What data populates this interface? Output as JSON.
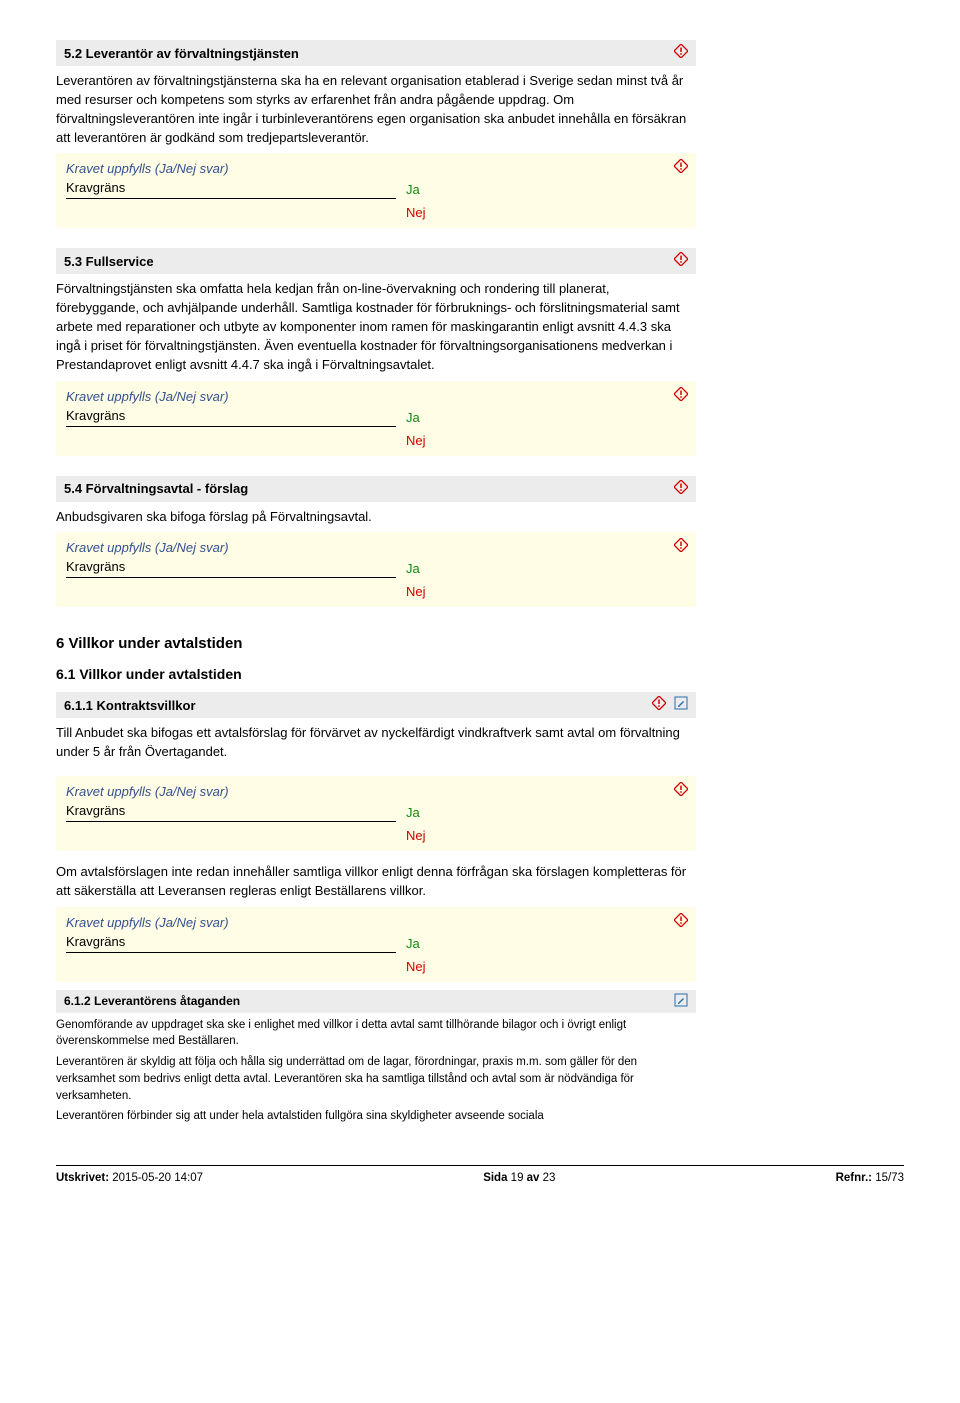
{
  "s52": {
    "title": "5.2 Leverantör av förvaltningstjänsten",
    "body": "Leverantören av förvaltningstjänsterna ska ha en relevant organisation etablerad i Sverige sedan minst två år med resurser och kompetens som styrks av erfarenhet från andra pågående uppdrag. Om förvaltningsleverantören inte ingår i turbinleverantörens egen organisation ska anbudet innehålla en försäkran att leverantören är godkänd som tredjepartsleverantör."
  },
  "s53": {
    "title": "5.3 Fullservice",
    "body": "Förvaltningstjänsten ska omfatta hela kedjan från on-line-övervakning och rondering till planerat, förebyggande, och avhjälpande underhåll. Samtliga kostnader för förbruknings- och förslitningsmaterial samt arbete med reparationer och utbyte av komponenter inom ramen för maskingarantin enligt avsnitt 4.4.3 ska ingå i priset för förvaltningstjänsten. Även eventuella kostnader för förvaltningsorganisationens medverkan i Prestandaprovet enligt avsnitt 4.4.7 ska ingå i Förvaltningsavtalet."
  },
  "s54": {
    "title": "5.4 Förvaltningsavtal - förslag",
    "body": "Anbudsgivaren ska bifoga förslag på Förvaltningsavtal."
  },
  "s6": {
    "title": "6 Villkor under avtalstiden"
  },
  "s61": {
    "title": "6.1 Villkor under avtalstiden"
  },
  "s611": {
    "title": "6.1.1 Kontraktsvillkor",
    "body": "Till Anbudet ska bifogas ett avtalsförslag för förvärvet av nyckelfärdigt vindkraftverk samt avtal om förvaltning under 5 år från Övertagandet.",
    "body2": "Om avtalsförslagen inte redan innehåller samtliga villkor enligt denna förfrågan ska förslagen kompletteras för att säkerställa att Leveransen regleras enligt Beställarens villkor."
  },
  "s612": {
    "title": "6.1.2 Leverantörens åtaganden",
    "p1": "Genomförande av uppdraget ska ske i enlighet med villkor i detta avtal samt tillhörande bilagor och i övrigt enligt överenskommelse med Beställaren.",
    "p2": "Leverantören är skyldig att följa och hålla sig underrättad om de lagar, förordningar, praxis m.m. som gäller för den verksamhet som bedrivs enligt detta avtal. Leverantören ska ha samtliga tillstånd och avtal som är nödvändiga för verksamheten.",
    "p3": "Leverantören förbinder sig att under hela avtalstiden fullgöra sina skyldigheter avseende sociala"
  },
  "req": {
    "label": "Kravet uppfylls (Ja/Nej svar)",
    "key": "Kravgräns",
    "ja": "Ja",
    "nej": "Nej"
  },
  "footer": {
    "printed_label": "Utskrivet:",
    "printed_val": " 2015-05-20 14:07",
    "page_label": "Sida ",
    "page_num": "19",
    "page_of": " av ",
    "page_total": "23",
    "ref_label": "Refnr.:",
    "ref_val": " 15/73"
  }
}
